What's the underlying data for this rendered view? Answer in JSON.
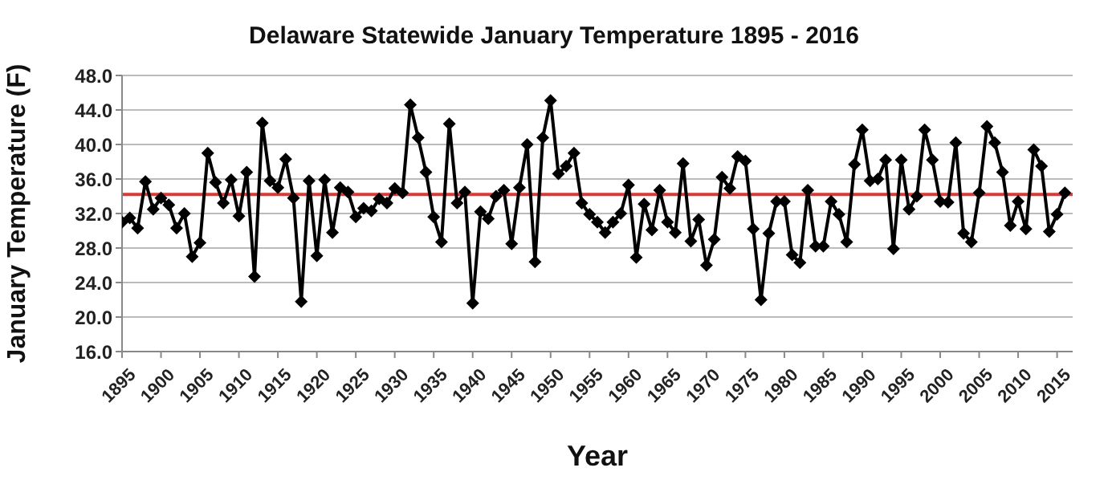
{
  "chart_data": {
    "type": "line",
    "title": "Delaware Statewide January Temperature 1895 - 2016",
    "xlabel": "Year",
    "ylabel": "January Temperature (F)",
    "x": [
      1895,
      1896,
      1897,
      1898,
      1899,
      1900,
      1901,
      1902,
      1903,
      1904,
      1905,
      1906,
      1907,
      1908,
      1909,
      1910,
      1911,
      1912,
      1913,
      1914,
      1915,
      1916,
      1917,
      1918,
      1919,
      1920,
      1921,
      1922,
      1923,
      1924,
      1925,
      1926,
      1927,
      1928,
      1929,
      1930,
      1931,
      1932,
      1933,
      1934,
      1935,
      1936,
      1937,
      1938,
      1939,
      1940,
      1941,
      1942,
      1943,
      1944,
      1945,
      1946,
      1947,
      1948,
      1949,
      1950,
      1951,
      1952,
      1953,
      1954,
      1955,
      1956,
      1957,
      1958,
      1959,
      1960,
      1961,
      1962,
      1963,
      1964,
      1965,
      1966,
      1967,
      1968,
      1969,
      1970,
      1971,
      1972,
      1973,
      1974,
      1975,
      1976,
      1977,
      1978,
      1979,
      1980,
      1981,
      1982,
      1983,
      1984,
      1985,
      1986,
      1987,
      1988,
      1989,
      1990,
      1991,
      1992,
      1993,
      1994,
      1995,
      1996,
      1997,
      1998,
      1999,
      2000,
      2001,
      2002,
      2003,
      2004,
      2005,
      2006,
      2007,
      2008,
      2009,
      2010,
      2011,
      2012,
      2013,
      2014,
      2015,
      2016
    ],
    "series": [
      {
        "color": "#000000",
        "values": [
          31.0,
          31.5,
          30.3,
          35.7,
          32.5,
          33.8,
          33.0,
          30.3,
          32.0,
          27.0,
          28.6,
          39.0,
          35.6,
          33.2,
          35.9,
          31.7,
          36.8,
          24.7,
          42.5,
          35.8,
          35.0,
          38.3,
          33.8,
          21.8,
          35.8,
          27.1,
          35.9,
          29.8,
          35.0,
          34.5,
          31.6,
          32.6,
          32.3,
          33.7,
          33.2,
          34.9,
          34.4,
          44.6,
          40.8,
          36.8,
          31.6,
          28.7,
          42.4,
          33.2,
          34.5,
          21.6,
          32.2,
          31.4,
          34.0,
          34.7,
          28.5,
          35.0,
          40.0,
          26.4,
          40.8,
          45.1,
          36.6,
          37.5,
          39.0,
          33.2,
          31.9,
          31.0,
          29.8,
          31.0,
          32.0,
          35.3,
          26.9,
          33.1,
          30.1,
          34.7,
          31.0,
          29.8,
          37.8,
          28.8,
          31.3,
          26.0,
          29.0,
          36.2,
          34.9,
          38.6,
          38.1,
          30.2,
          22.0,
          29.7,
          33.4,
          33.4,
          27.2,
          26.3,
          34.7,
          28.2,
          28.2,
          33.4,
          31.9,
          28.7,
          37.7,
          41.7,
          35.8,
          36.0,
          38.2,
          27.9,
          38.2,
          32.5,
          34.0,
          41.7,
          38.2,
          33.4,
          33.3,
          40.2,
          29.7,
          28.7,
          34.4,
          42.1,
          40.2,
          36.8,
          30.6,
          33.4,
          30.2,
          39.4,
          37.5,
          29.9,
          31.9,
          34.4
        ]
      }
    ],
    "xlim": [
      1895,
      2017
    ],
    "xticks": [
      1895,
      1900,
      1905,
      1910,
      1915,
      1920,
      1925,
      1930,
      1935,
      1940,
      1945,
      1950,
      1955,
      1960,
      1965,
      1970,
      1975,
      1980,
      1985,
      1990,
      1995,
      2000,
      2005,
      2010,
      2015
    ],
    "ylim": [
      16,
      48
    ],
    "yticks": [
      {
        "value": 16,
        "label": "16.0"
      },
      {
        "value": 20,
        "label": "20.0"
      },
      {
        "value": 24,
        "label": "24.0"
      },
      {
        "value": 28,
        "label": "28.0"
      },
      {
        "value": 32,
        "label": "32.0"
      },
      {
        "value": 36,
        "label": "36.0"
      },
      {
        "value": 40,
        "label": "40.0"
      },
      {
        "value": 44,
        "label": "44.0"
      },
      {
        "value": 48,
        "label": "48.0"
      }
    ],
    "grid": "y",
    "marker": "diamond",
    "line_style": "solid",
    "ref_lines": [
      {
        "axis": "y",
        "value": 34.2,
        "color": "#d93a35"
      }
    ]
  }
}
